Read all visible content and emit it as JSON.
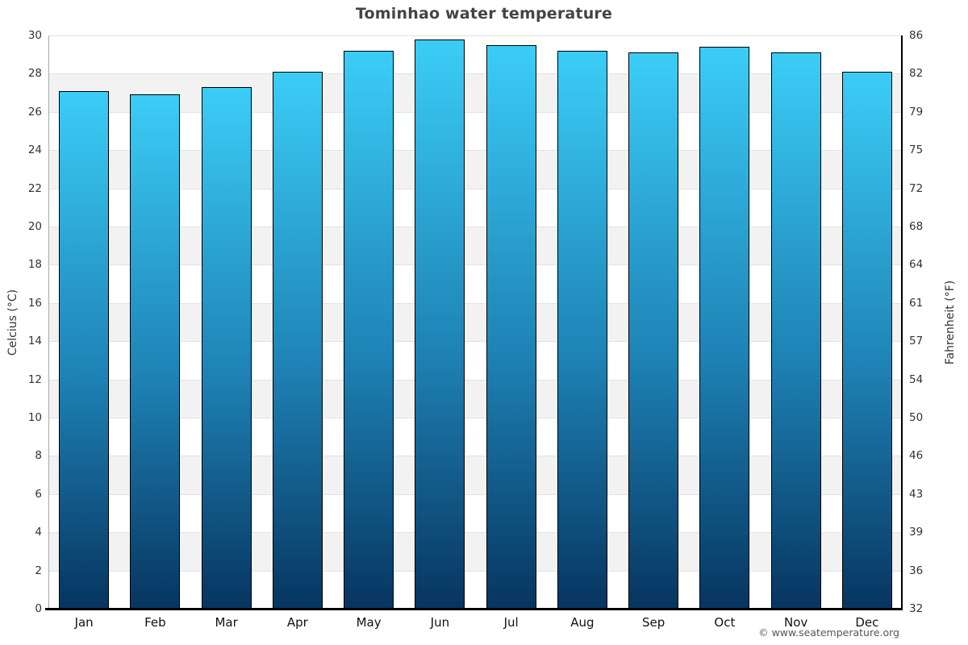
{
  "header": {
    "title": "Tominhao water temperature"
  },
  "footer": {
    "copyright": "© www.seatemperature.org"
  },
  "chart_data": {
    "type": "bar",
    "title": "Tominhao water temperature",
    "xlabel": "",
    "ylabel_left": "Celcius (°C)",
    "ylabel_right": "Fahrenheit (°F)",
    "categories": [
      "Jan",
      "Feb",
      "Mar",
      "Apr",
      "May",
      "Jun",
      "Jul",
      "Aug",
      "Sep",
      "Oct",
      "Nov",
      "Dec"
    ],
    "values_celsius": [
      27.1,
      26.9,
      27.3,
      28.1,
      29.2,
      29.8,
      29.5,
      29.2,
      29.1,
      29.4,
      29.1,
      28.1
    ],
    "values_fahrenheit_approx": [
      80.8,
      80.4,
      81.1,
      82.6,
      84.6,
      85.6,
      85.1,
      84.6,
      84.4,
      84.9,
      84.4,
      82.6
    ],
    "ylim_celsius": [
      0,
      30
    ],
    "yticks_celsius": [
      30,
      28,
      26,
      24,
      22,
      20,
      18,
      16,
      14,
      12,
      10,
      8,
      6,
      4,
      2,
      0
    ],
    "yticks_fahrenheit": [
      86,
      82,
      79,
      75,
      72,
      68,
      64,
      61,
      57,
      54,
      50,
      46,
      43,
      39,
      36,
      32
    ],
    "grid": "alternating horizontal bands every 2 °C",
    "legend_position": "none",
    "colors": {
      "bar_gradient_top": "#3bcdf6",
      "bar_gradient_mid": "#1e82b5",
      "bar_gradient_bottom": "#073560",
      "bar_border": "#000000",
      "band_white": "#ffffff",
      "band_gray": "#f2f2f2",
      "gridline": "#e2e2e2",
      "axis_left": "#a8a8a8",
      "axis_black": "#000000",
      "title_text": "#444444",
      "tick_text": "#333333",
      "month_text": "#111111",
      "footer_text": "#555555"
    }
  }
}
